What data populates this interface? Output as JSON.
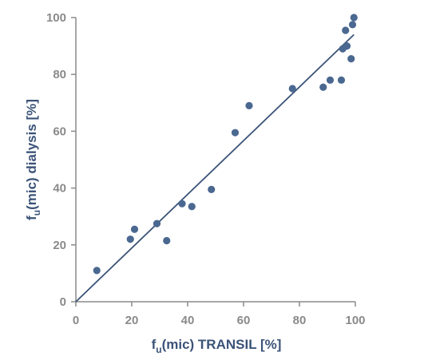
{
  "chart_data": {
    "type": "scatter",
    "title": "",
    "xlabel": {
      "prefix": "f",
      "subscript": "u",
      "suffix": "(mic) TRANSIL [%]"
    },
    "ylabel": {
      "prefix": "f",
      "subscript": "u",
      "suffix": "(mic) dialysis [%]"
    },
    "xlim": [
      0,
      100
    ],
    "ylim": [
      0,
      100
    ],
    "x_ticks": [
      "0",
      "20",
      "40",
      "60",
      "80",
      "100"
    ],
    "y_ticks": [
      "0",
      "20",
      "40",
      "60",
      "80",
      "100"
    ],
    "grid": false,
    "legend": "none",
    "series": [
      {
        "points": [
          {
            "x": 7.5,
            "y": 11
          },
          {
            "x": 19.5,
            "y": 22
          },
          {
            "x": 21,
            "y": 25.5
          },
          {
            "x": 29,
            "y": 27.5
          },
          {
            "x": 32.5,
            "y": 21.5
          },
          {
            "x": 38,
            "y": 34.5
          },
          {
            "x": 41.5,
            "y": 33.5
          },
          {
            "x": 48.5,
            "y": 39.5
          },
          {
            "x": 57,
            "y": 59.5
          },
          {
            "x": 62,
            "y": 69
          },
          {
            "x": 77.5,
            "y": 75
          },
          {
            "x": 88.5,
            "y": 75.5
          },
          {
            "x": 91,
            "y": 78
          },
          {
            "x": 95,
            "y": 78
          },
          {
            "x": 95.5,
            "y": 89
          },
          {
            "x": 96.5,
            "y": 95.5
          },
          {
            "x": 97,
            "y": 90
          },
          {
            "x": 98.5,
            "y": 85.5
          },
          {
            "x": 99,
            "y": 97.5
          },
          {
            "x": 99.5,
            "y": 100
          }
        ]
      }
    ],
    "trendline": {
      "x": [
        0,
        99.5
      ],
      "y": [
        0,
        94
      ]
    },
    "colors": {
      "points": "#4a6890",
      "trendline": "#3b5378",
      "axis": "#8a8a8a",
      "label": "#3b5378"
    }
  }
}
